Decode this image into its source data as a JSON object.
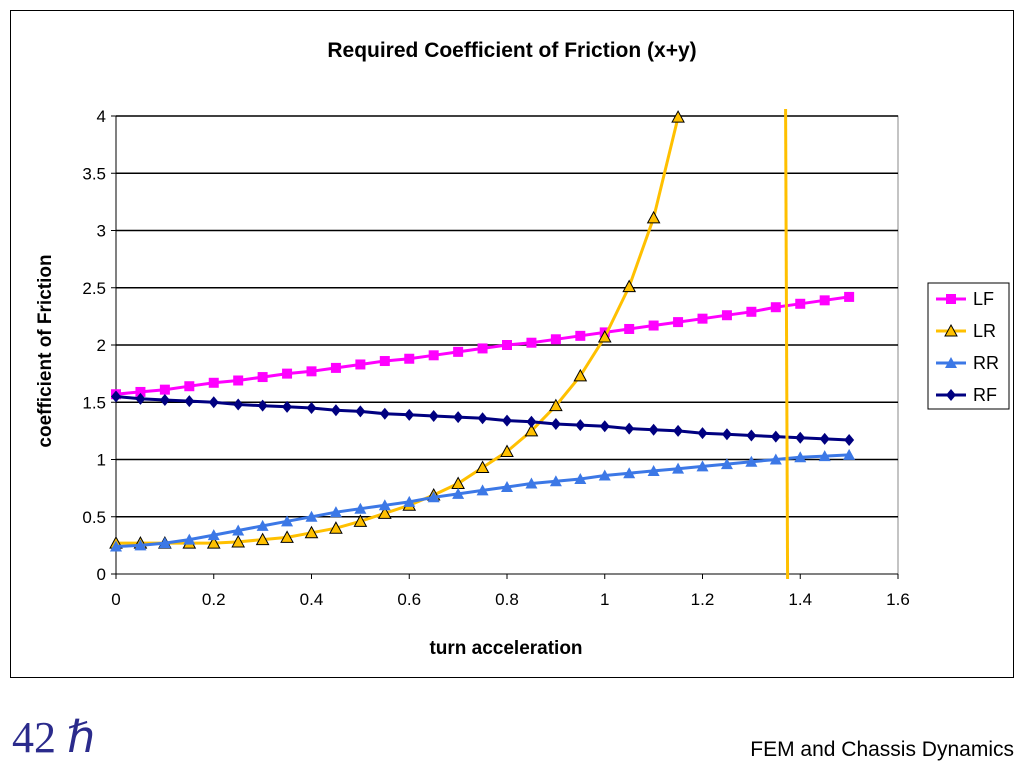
{
  "footer": {
    "slide_number": "42 ℏ",
    "presentation_title": "FEM and Chassis Dynamics"
  },
  "chart_data": {
    "type": "line",
    "title": "Required Coefficient of Friction (x+y)",
    "xlabel": "turn acceleration",
    "ylabel": "coefficient of Friction",
    "xlim": [
      0,
      1.6
    ],
    "ylim": [
      0,
      4
    ],
    "xticks": [
      "0",
      "0.2",
      "0.4",
      "0.6",
      "0.8",
      "1",
      "1.2",
      "1.4",
      "1.6"
    ],
    "yticks": [
      "0",
      "0.5",
      "1",
      "1.5",
      "2",
      "2.5",
      "3",
      "3.5",
      "4"
    ],
    "grid": "horizontal",
    "legend_position": "right",
    "series": [
      {
        "name": "LF",
        "color": "#ff00ff",
        "marker": "square",
        "x": [
          0,
          0.05,
          0.1,
          0.15,
          0.2,
          0.25,
          0.3,
          0.35,
          0.4,
          0.45,
          0.5,
          0.55,
          0.6,
          0.65,
          0.7,
          0.75,
          0.8,
          0.85,
          0.9,
          0.95,
          1,
          1.05,
          1.1,
          1.15,
          1.2,
          1.25,
          1.3,
          1.35,
          1.4,
          1.45,
          1.5
        ],
        "y": [
          1.57,
          1.59,
          1.61,
          1.64,
          1.67,
          1.69,
          1.72,
          1.75,
          1.77,
          1.8,
          1.83,
          1.86,
          1.88,
          1.91,
          1.94,
          1.97,
          2.0,
          2.02,
          2.05,
          2.08,
          2.11,
          2.14,
          2.17,
          2.2,
          2.23,
          2.26,
          2.29,
          2.33,
          2.36,
          2.39,
          2.42
        ]
      },
      {
        "name": "LR",
        "color": "#ffc000",
        "marker": "triangle-open",
        "x": [
          0,
          0.05,
          0.1,
          0.15,
          0.2,
          0.25,
          0.3,
          0.35,
          0.4,
          0.45,
          0.5,
          0.55,
          0.6,
          0.65,
          0.7,
          0.75,
          0.8,
          0.85,
          0.9,
          0.95,
          1,
          1.05,
          1.1,
          1.15
        ],
        "y": [
          0.27,
          0.27,
          0.27,
          0.27,
          0.27,
          0.28,
          0.3,
          0.32,
          0.36,
          0.4,
          0.46,
          0.53,
          0.6,
          0.69,
          0.79,
          0.93,
          1.07,
          1.25,
          1.47,
          1.73,
          2.07,
          2.51,
          3.11,
          3.99
        ]
      },
      {
        "name": "RR",
        "color": "#3c78e6",
        "marker": "triangle",
        "x": [
          0,
          0.05,
          0.1,
          0.15,
          0.2,
          0.25,
          0.3,
          0.35,
          0.4,
          0.45,
          0.5,
          0.55,
          0.6,
          0.65,
          0.7,
          0.75,
          0.8,
          0.85,
          0.9,
          0.95,
          1,
          1.05,
          1.1,
          1.15,
          1.2,
          1.25,
          1.3,
          1.35,
          1.4,
          1.45,
          1.5
        ],
        "y": [
          0.24,
          0.25,
          0.27,
          0.3,
          0.34,
          0.38,
          0.42,
          0.46,
          0.5,
          0.54,
          0.57,
          0.6,
          0.63,
          0.67,
          0.7,
          0.73,
          0.76,
          0.79,
          0.81,
          0.83,
          0.86,
          0.88,
          0.9,
          0.92,
          0.94,
          0.96,
          0.98,
          1.0,
          1.02,
          1.03,
          1.04
        ]
      },
      {
        "name": "RF",
        "color": "#000080",
        "marker": "diamond",
        "x": [
          0,
          0.05,
          0.1,
          0.15,
          0.2,
          0.25,
          0.3,
          0.35,
          0.4,
          0.45,
          0.5,
          0.55,
          0.6,
          0.65,
          0.7,
          0.75,
          0.8,
          0.85,
          0.9,
          0.95,
          1,
          1.05,
          1.1,
          1.15,
          1.2,
          1.25,
          1.3,
          1.35,
          1.4,
          1.45,
          1.5
        ],
        "y": [
          1.55,
          1.53,
          1.52,
          1.51,
          1.5,
          1.48,
          1.47,
          1.46,
          1.45,
          1.43,
          1.42,
          1.4,
          1.39,
          1.38,
          1.37,
          1.36,
          1.34,
          1.33,
          1.31,
          1.3,
          1.29,
          1.27,
          1.26,
          1.25,
          1.23,
          1.22,
          1.21,
          1.2,
          1.19,
          1.18,
          1.17
        ]
      }
    ],
    "vertical_line": {
      "x": 1.37,
      "color": "#ffc000"
    }
  }
}
